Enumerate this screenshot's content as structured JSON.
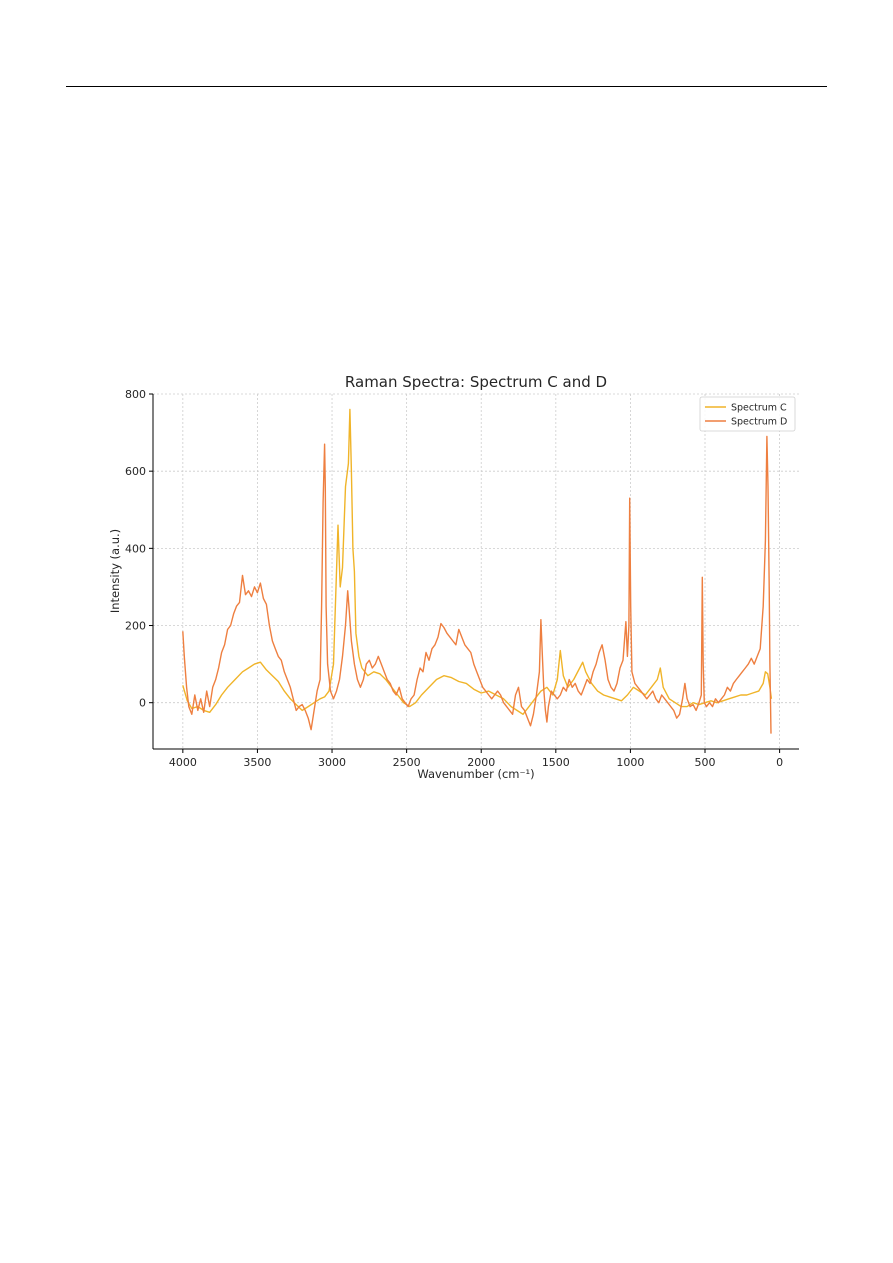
{
  "chart_data": {
    "type": "line",
    "title": "Raman Spectra: Spectrum C and D",
    "xlabel": "Wavenumber (cm⁻¹)",
    "ylabel": "Intensity (a.u.)",
    "xlim": [
      4200,
      -130
    ],
    "x_axis_reversed": true,
    "ylim": [
      -120,
      800
    ],
    "xticks": [
      4000,
      3500,
      3000,
      2500,
      2000,
      1500,
      1000,
      500,
      0
    ],
    "yticks": [
      0,
      200,
      400,
      600,
      800
    ],
    "grid": true,
    "legend_position": "top-right",
    "series": [
      {
        "name": "Spectrum C",
        "color": "#f0b429",
        "points": [
          [
            4000,
            45
          ],
          [
            3970,
            5
          ],
          [
            3940,
            -15
          ],
          [
            3900,
            -10
          ],
          [
            3860,
            -20
          ],
          [
            3820,
            -25
          ],
          [
            3780,
            -5
          ],
          [
            3740,
            20
          ],
          [
            3700,
            40
          ],
          [
            3650,
            60
          ],
          [
            3600,
            80
          ],
          [
            3560,
            90
          ],
          [
            3520,
            100
          ],
          [
            3480,
            105
          ],
          [
            3440,
            85
          ],
          [
            3400,
            70
          ],
          [
            3360,
            55
          ],
          [
            3320,
            30
          ],
          [
            3280,
            10
          ],
          [
            3240,
            -5
          ],
          [
            3200,
            -20
          ],
          [
            3160,
            -10
          ],
          [
            3120,
            0
          ],
          [
            3080,
            10
          ],
          [
            3050,
            15
          ],
          [
            3020,
            30
          ],
          [
            2990,
            100
          ],
          [
            2960,
            460
          ],
          [
            2945,
            300
          ],
          [
            2930,
            350
          ],
          [
            2910,
            560
          ],
          [
            2890,
            620
          ],
          [
            2880,
            760
          ],
          [
            2870,
            600
          ],
          [
            2860,
            400
          ],
          [
            2850,
            340
          ],
          [
            2840,
            180
          ],
          [
            2820,
            120
          ],
          [
            2800,
            90
          ],
          [
            2760,
            70
          ],
          [
            2720,
            80
          ],
          [
            2680,
            75
          ],
          [
            2640,
            60
          ],
          [
            2600,
            40
          ],
          [
            2560,
            20
          ],
          [
            2520,
            0
          ],
          [
            2480,
            -10
          ],
          [
            2440,
            0
          ],
          [
            2400,
            20
          ],
          [
            2350,
            40
          ],
          [
            2300,
            60
          ],
          [
            2250,
            70
          ],
          [
            2200,
            65
          ],
          [
            2150,
            55
          ],
          [
            2100,
            50
          ],
          [
            2050,
            35
          ],
          [
            2000,
            25
          ],
          [
            1950,
            30
          ],
          [
            1900,
            20
          ],
          [
            1850,
            10
          ],
          [
            1800,
            -10
          ],
          [
            1760,
            -20
          ],
          [
            1720,
            -30
          ],
          [
            1680,
            -10
          ],
          [
            1640,
            10
          ],
          [
            1600,
            30
          ],
          [
            1560,
            40
          ],
          [
            1520,
            20
          ],
          [
            1490,
            60
          ],
          [
            1470,
            135
          ],
          [
            1450,
            70
          ],
          [
            1420,
            40
          ],
          [
            1380,
            60
          ],
          [
            1340,
            90
          ],
          [
            1320,
            105
          ],
          [
            1300,
            80
          ],
          [
            1260,
            50
          ],
          [
            1220,
            30
          ],
          [
            1180,
            20
          ],
          [
            1140,
            15
          ],
          [
            1100,
            10
          ],
          [
            1060,
            5
          ],
          [
            1020,
            20
          ],
          [
            980,
            40
          ],
          [
            940,
            30
          ],
          [
            900,
            20
          ],
          [
            860,
            40
          ],
          [
            820,
            60
          ],
          [
            800,
            90
          ],
          [
            780,
            40
          ],
          [
            740,
            10
          ],
          [
            700,
            0
          ],
          [
            660,
            -10
          ],
          [
            620,
            -10
          ],
          [
            580,
            0
          ],
          [
            540,
            -5
          ],
          [
            500,
            0
          ],
          [
            460,
            5
          ],
          [
            420,
            0
          ],
          [
            380,
            5
          ],
          [
            340,
            10
          ],
          [
            300,
            15
          ],
          [
            260,
            20
          ],
          [
            220,
            20
          ],
          [
            180,
            25
          ],
          [
            140,
            30
          ],
          [
            110,
            50
          ],
          [
            95,
            80
          ],
          [
            80,
            75
          ],
          [
            65,
            40
          ],
          [
            55,
            10
          ]
        ]
      },
      {
        "name": "Spectrum D",
        "color": "#ee7f40",
        "points": [
          [
            4000,
            185
          ],
          [
            3990,
            120
          ],
          [
            3975,
            40
          ],
          [
            3960,
            -10
          ],
          [
            3940,
            -30
          ],
          [
            3920,
            20
          ],
          [
            3900,
            -20
          ],
          [
            3880,
            10
          ],
          [
            3860,
            -25
          ],
          [
            3840,
            30
          ],
          [
            3820,
            -10
          ],
          [
            3800,
            40
          ],
          [
            3780,
            60
          ],
          [
            3760,
            90
          ],
          [
            3740,
            130
          ],
          [
            3720,
            150
          ],
          [
            3700,
            190
          ],
          [
            3680,
            200
          ],
          [
            3660,
            230
          ],
          [
            3640,
            250
          ],
          [
            3620,
            260
          ],
          [
            3600,
            330
          ],
          [
            3580,
            280
          ],
          [
            3560,
            290
          ],
          [
            3540,
            275
          ],
          [
            3520,
            300
          ],
          [
            3500,
            285
          ],
          [
            3480,
            310
          ],
          [
            3460,
            270
          ],
          [
            3440,
            255
          ],
          [
            3420,
            200
          ],
          [
            3400,
            160
          ],
          [
            3380,
            140
          ],
          [
            3360,
            120
          ],
          [
            3340,
            110
          ],
          [
            3320,
            80
          ],
          [
            3300,
            60
          ],
          [
            3280,
            40
          ],
          [
            3260,
            10
          ],
          [
            3240,
            -20
          ],
          [
            3220,
            -10
          ],
          [
            3200,
            -5
          ],
          [
            3180,
            -20
          ],
          [
            3160,
            -40
          ],
          [
            3140,
            -70
          ],
          [
            3120,
            -20
          ],
          [
            3100,
            30
          ],
          [
            3080,
            60
          ],
          [
            3070,
            250
          ],
          [
            3060,
            520
          ],
          [
            3050,
            670
          ],
          [
            3045,
            560
          ],
          [
            3040,
            250
          ],
          [
            3030,
            100
          ],
          [
            3010,
            30
          ],
          [
            2990,
            10
          ],
          [
            2970,
            30
          ],
          [
            2950,
            60
          ],
          [
            2930,
            120
          ],
          [
            2910,
            200
          ],
          [
            2895,
            290
          ],
          [
            2885,
            240
          ],
          [
            2870,
            160
          ],
          [
            2850,
            100
          ],
          [
            2830,
            60
          ],
          [
            2810,
            40
          ],
          [
            2790,
            60
          ],
          [
            2770,
            100
          ],
          [
            2750,
            110
          ],
          [
            2730,
            90
          ],
          [
            2710,
            100
          ],
          [
            2690,
            120
          ],
          [
            2670,
            100
          ],
          [
            2650,
            80
          ],
          [
            2630,
            60
          ],
          [
            2610,
            50
          ],
          [
            2590,
            30
          ],
          [
            2570,
            20
          ],
          [
            2550,
            40
          ],
          [
            2530,
            10
          ],
          [
            2510,
            0
          ],
          [
            2490,
            -10
          ],
          [
            2470,
            10
          ],
          [
            2450,
            20
          ],
          [
            2430,
            60
          ],
          [
            2410,
            90
          ],
          [
            2390,
            80
          ],
          [
            2370,
            130
          ],
          [
            2350,
            110
          ],
          [
            2330,
            140
          ],
          [
            2310,
            150
          ],
          [
            2290,
            170
          ],
          [
            2270,
            205
          ],
          [
            2250,
            195
          ],
          [
            2230,
            180
          ],
          [
            2210,
            170
          ],
          [
            2190,
            160
          ],
          [
            2170,
            150
          ],
          [
            2150,
            190
          ],
          [
            2130,
            170
          ],
          [
            2110,
            150
          ],
          [
            2090,
            140
          ],
          [
            2070,
            130
          ],
          [
            2050,
            100
          ],
          [
            2030,
            80
          ],
          [
            2010,
            60
          ],
          [
            1990,
            40
          ],
          [
            1970,
            30
          ],
          [
            1950,
            20
          ],
          [
            1930,
            10
          ],
          [
            1910,
            20
          ],
          [
            1890,
            30
          ],
          [
            1870,
            20
          ],
          [
            1850,
            0
          ],
          [
            1830,
            -10
          ],
          [
            1810,
            -20
          ],
          [
            1790,
            -30
          ],
          [
            1770,
            20
          ],
          [
            1750,
            40
          ],
          [
            1730,
            -10
          ],
          [
            1710,
            -20
          ],
          [
            1690,
            -40
          ],
          [
            1670,
            -60
          ],
          [
            1650,
            -30
          ],
          [
            1630,
            20
          ],
          [
            1610,
            80
          ],
          [
            1600,
            215
          ],
          [
            1590,
            120
          ],
          [
            1580,
            30
          ],
          [
            1570,
            -20
          ],
          [
            1560,
            -50
          ],
          [
            1550,
            -10
          ],
          [
            1530,
            30
          ],
          [
            1510,
            20
          ],
          [
            1490,
            10
          ],
          [
            1470,
            20
          ],
          [
            1450,
            40
          ],
          [
            1430,
            30
          ],
          [
            1410,
            60
          ],
          [
            1390,
            40
          ],
          [
            1370,
            50
          ],
          [
            1350,
            30
          ],
          [
            1330,
            20
          ],
          [
            1310,
            40
          ],
          [
            1290,
            60
          ],
          [
            1270,
            50
          ],
          [
            1250,
            80
          ],
          [
            1230,
            100
          ],
          [
            1210,
            130
          ],
          [
            1190,
            150
          ],
          [
            1170,
            110
          ],
          [
            1150,
            60
          ],
          [
            1130,
            40
          ],
          [
            1110,
            30
          ],
          [
            1090,
            50
          ],
          [
            1070,
            90
          ],
          [
            1050,
            110
          ],
          [
            1030,
            210
          ],
          [
            1020,
            120
          ],
          [
            1010,
            200
          ],
          [
            1005,
            530
          ],
          [
            998,
            250
          ],
          [
            990,
            80
          ],
          [
            970,
            50
          ],
          [
            950,
            40
          ],
          [
            930,
            30
          ],
          [
            910,
            20
          ],
          [
            890,
            10
          ],
          [
            870,
            20
          ],
          [
            850,
            30
          ],
          [
            830,
            10
          ],
          [
            810,
            0
          ],
          [
            790,
            20
          ],
          [
            770,
            10
          ],
          [
            750,
            0
          ],
          [
            730,
            -10
          ],
          [
            710,
            -20
          ],
          [
            690,
            -40
          ],
          [
            670,
            -30
          ],
          [
            650,
            10
          ],
          [
            635,
            50
          ],
          [
            620,
            10
          ],
          [
            600,
            -10
          ],
          [
            580,
            -5
          ],
          [
            560,
            -20
          ],
          [
            540,
            0
          ],
          [
            525,
            20
          ],
          [
            518,
            325
          ],
          [
            512,
            100
          ],
          [
            505,
            0
          ],
          [
            490,
            -10
          ],
          [
            470,
            0
          ],
          [
            450,
            -10
          ],
          [
            430,
            10
          ],
          [
            410,
            0
          ],
          [
            390,
            10
          ],
          [
            370,
            20
          ],
          [
            350,
            40
          ],
          [
            330,
            30
          ],
          [
            310,
            50
          ],
          [
            290,
            60
          ],
          [
            270,
            70
          ],
          [
            250,
            80
          ],
          [
            230,
            90
          ],
          [
            210,
            100
          ],
          [
            190,
            115
          ],
          [
            170,
            100
          ],
          [
            150,
            120
          ],
          [
            130,
            140
          ],
          [
            110,
            250
          ],
          [
            95,
            420
          ],
          [
            85,
            690
          ],
          [
            78,
            560
          ],
          [
            70,
            300
          ],
          [
            65,
            100
          ],
          [
            58,
            -80
          ]
        ]
      }
    ]
  }
}
